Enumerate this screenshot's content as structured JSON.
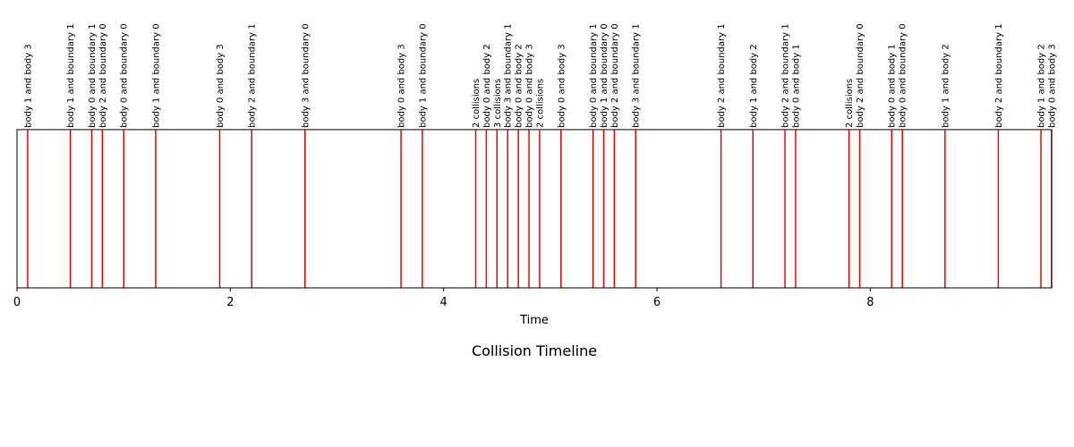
{
  "chart_data": {
    "type": "timeline",
    "title": "Collision Timeline",
    "xlabel": "Time",
    "xlim": [
      0,
      9.7
    ],
    "xticks": [
      0,
      2,
      4,
      6,
      8
    ],
    "line_color": "#ff0000",
    "events": [
      {
        "t": 0.1,
        "label": "body 1 and body 3"
      },
      {
        "t": 0.5,
        "label": "body 1 and boundary 1"
      },
      {
        "t": 0.7,
        "label": "body 0 and boundary 1"
      },
      {
        "t": 0.8,
        "label": "body 2 and boundary 0"
      },
      {
        "t": 1.0,
        "label": "body 0 and boundary 0"
      },
      {
        "t": 1.3,
        "label": "body 1 and boundary 0"
      },
      {
        "t": 1.9,
        "label": "body 0 and body 3"
      },
      {
        "t": 2.2,
        "label": "body 2 and boundary 1"
      },
      {
        "t": 2.7,
        "label": "body 3 and boundary 0"
      },
      {
        "t": 3.6,
        "label": "body 0 and body 3"
      },
      {
        "t": 3.8,
        "label": "body 1 and boundary 0"
      },
      {
        "t": 4.3,
        "label": "2 collisions"
      },
      {
        "t": 4.4,
        "label": "body 0 and body 2"
      },
      {
        "t": 4.5,
        "label": "3 collisions"
      },
      {
        "t": 4.6,
        "label": "body 3 and boundary 1"
      },
      {
        "t": 4.7,
        "label": "body 0 and body 2"
      },
      {
        "t": 4.8,
        "label": "body 0 and body 3"
      },
      {
        "t": 4.9,
        "label": "2 collisions"
      },
      {
        "t": 5.1,
        "label": "body 0 and body 3"
      },
      {
        "t": 5.4,
        "label": "body 0 and boundary 1"
      },
      {
        "t": 5.5,
        "label": "body 1 and boundary 0"
      },
      {
        "t": 5.6,
        "label": "body 2 and boundary 0"
      },
      {
        "t": 5.8,
        "label": "body 3 and boundary 1"
      },
      {
        "t": 6.6,
        "label": "body 2 and boundary 1"
      },
      {
        "t": 6.9,
        "label": "body 1 and body 2"
      },
      {
        "t": 7.2,
        "label": "body 2 and boundary 1"
      },
      {
        "t": 7.3,
        "label": "body 0 and body 1"
      },
      {
        "t": 7.8,
        "label": "2 collisions"
      },
      {
        "t": 7.9,
        "label": "body 2 and boundary 0"
      },
      {
        "t": 8.2,
        "label": "body 0 and body 1"
      },
      {
        "t": 8.3,
        "label": "body 0 and boundary 0"
      },
      {
        "t": 8.7,
        "label": "body 1 and body 2"
      },
      {
        "t": 9.2,
        "label": "body 2 and boundary 1"
      },
      {
        "t": 9.6,
        "label": "body 1 and body 2"
      },
      {
        "t": 9.7,
        "label": "body 0 and body 3"
      }
    ]
  }
}
